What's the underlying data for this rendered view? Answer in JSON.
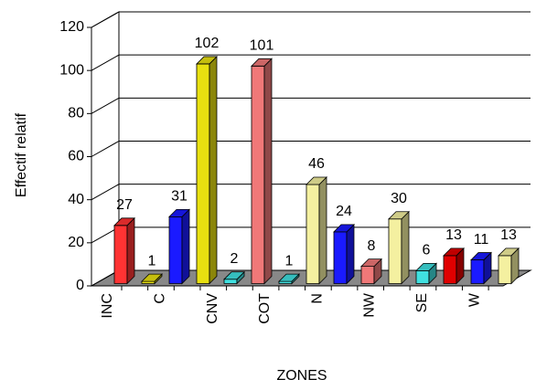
{
  "chart_data": {
    "type": "bar3d",
    "x_label": "ZONES",
    "y_label": "Effectif relatif",
    "categories": [
      "INC",
      null,
      "C",
      null,
      "CNV",
      null,
      "COT",
      null,
      "N",
      null,
      "NW",
      null,
      "SE",
      null,
      "W"
    ],
    "values": [
      27,
      1,
      31,
      102,
      2,
      101,
      1,
      46,
      24,
      8,
      30,
      6,
      13,
      11,
      13
    ],
    "colors": [
      "#ff3333",
      "#e8e010",
      "#1a1aff",
      "#e8e010",
      "#40e0e0",
      "#f07878",
      "#40e0e0",
      "#f4f0a0",
      "#1a1aff",
      "#f07878",
      "#f4f0a0",
      "#40e0e0",
      "#e00000",
      "#1a1aff",
      "#f4f0a0"
    ],
    "ylim": [
      0,
      120
    ],
    "yticks": [
      0,
      20,
      40,
      60,
      80,
      100,
      120
    ],
    "grid": true
  }
}
